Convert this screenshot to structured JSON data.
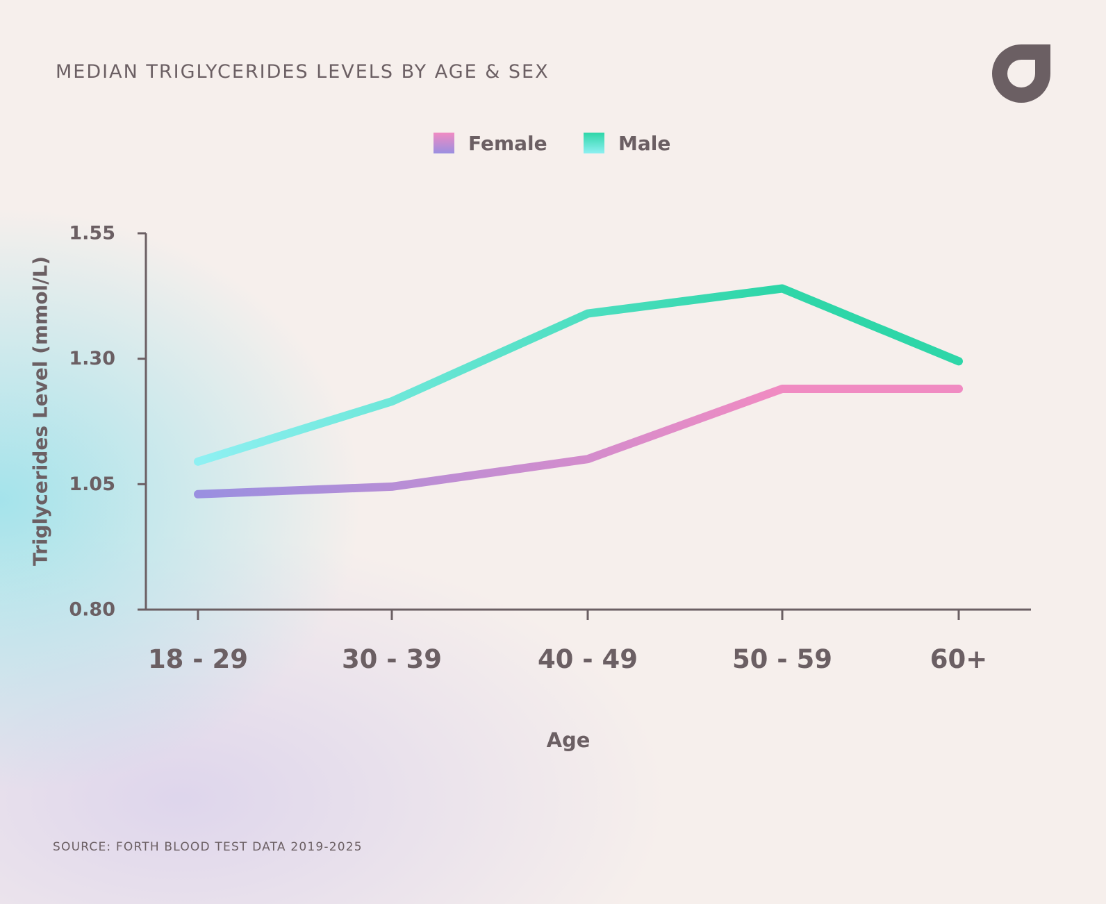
{
  "header": {
    "title": "MEDIAN TRIGLYCERIDES LEVELS BY AGE & SEX"
  },
  "logo": {
    "icon": "drop-logo-icon",
    "color": "#6b5f63"
  },
  "colors": {
    "text": "#6b5f63",
    "axis": "#6b5f63",
    "female_start": "#9a8fe0",
    "female_end": "#f08bc2",
    "male_start": "#8ef0f2",
    "male_end": "#2ed6a8"
  },
  "chart_data": {
    "type": "line",
    "title": "MEDIAN TRIGLYCERIDES LEVELS BY AGE & SEX",
    "xlabel": "Age",
    "ylabel": "Triglycerides Level (mmol/L)",
    "categories": [
      "18 - 29",
      "30 - 39",
      "40 - 49",
      "50 - 59",
      "60+"
    ],
    "ylim": [
      0.8,
      1.55
    ],
    "yticks": [
      "0.80",
      "1.05",
      "1.30",
      "1.55"
    ],
    "grid": false,
    "legend": {
      "position": "top-center"
    },
    "series": [
      {
        "name": "Female",
        "values": [
          1.03,
          1.045,
          1.1,
          1.24,
          1.24
        ]
      },
      {
        "name": "Male",
        "values": [
          1.095,
          1.215,
          1.39,
          1.44,
          1.295
        ]
      }
    ]
  },
  "footer": {
    "source": "SOURCE: FORTH BLOOD TEST DATA 2019-2025"
  }
}
